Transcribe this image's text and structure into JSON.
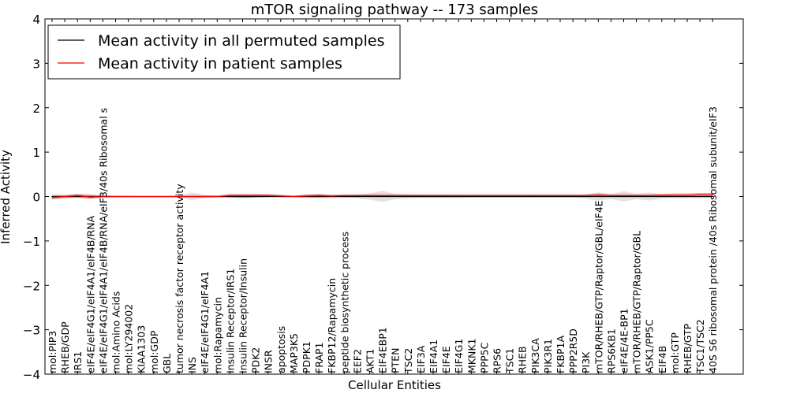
{
  "chart_data": {
    "type": "line",
    "title": "mTOR signaling pathway -- 173 samples",
    "xlabel": "Cellular Entities",
    "ylabel": "Inferred Activity",
    "ylim": [
      -4,
      4
    ],
    "yticks": [
      -4,
      -3,
      -2,
      -1,
      0,
      1,
      2,
      3,
      4
    ],
    "ytick_labels": [
      "−4",
      "−3",
      "−2",
      "−1",
      "0",
      "1",
      "2",
      "3",
      "4"
    ],
    "grid": false,
    "legend_position": "top-left",
    "categories": [
      "mol:PIP3",
      "RHEB/GDP",
      "IRS1",
      "eIF4E/eIF4G1/eIF4A1/eIF4B/RNA",
      "eIF4E/eIF4G1/eIF4A1/eIF4B/RNA/eIF3/40s Ribosomal s",
      "mol:Amino Acids",
      "mol:LY294002",
      "KIAA1303",
      "mol:GDP",
      "GBL",
      "tumor necrosis factor receptor activity",
      "INS",
      "eIF4E/eIF4G1/eIF4A1",
      "mol:Rapamycin",
      "Insulin Receptor/IRS1",
      "Insulin Receptor/Insulin",
      "PDK2",
      "INSR",
      "apoptosis",
      "MAP3K5",
      "PDPK1",
      "FRAP1",
      "FKBP12/Rapamycin",
      "peptide biosynthetic process",
      "EEF2",
      "AKT1",
      "EIF4EBP1",
      "PTEN",
      "TSC2",
      "EIF3A",
      "EIF4A1",
      "EIF4E",
      "EIF4G1",
      "MKNK1",
      "PPP5C",
      "RPS6",
      "TSC1",
      "RHEB",
      "PIK3CA",
      "PIK3R1",
      "FKBP1A",
      "PPP2R5D",
      "PI3K",
      "mTOR/RHEB/GTP/Raptor/GBL/eIF4E",
      "RPS6KB1",
      "eIF4E/4E-BP1",
      "mTOR/RHEB/GTP/Raptor/GBL",
      "ASK1/PP5C",
      "EIF4B",
      "mol:GTP",
      "RHEB/GTP",
      "TSC1/TSC2",
      "40S S6 ribosomal protein /40s Ribosomal subunit/eIF3"
    ],
    "series": [
      {
        "name": "Mean activity in all permuted samples",
        "color": "#000000",
        "values": [
          0.0,
          0.0,
          0.0,
          0.0,
          0.0,
          0.0,
          0.0,
          0.0,
          0.0,
          0.0,
          0.0,
          0.0,
          0.0,
          0.0,
          0.0,
          0.0,
          0.0,
          0.0,
          0.0,
          0.0,
          0.0,
          0.0,
          0.0,
          0.0,
          0.0,
          0.0,
          0.0,
          0.0,
          0.0,
          0.0,
          0.0,
          0.0,
          0.0,
          0.0,
          0.0,
          0.0,
          0.0,
          0.0,
          0.0,
          0.0,
          0.0,
          0.0,
          0.0,
          0.0,
          0.0,
          0.0,
          0.0,
          0.0,
          0.0,
          0.0,
          0.0,
          0.0,
          0.0
        ],
        "band_color": "#d8d8d8",
        "band_lower": [
          -0.07,
          -0.05,
          -0.04,
          -0.06,
          -0.03,
          -0.02,
          -0.02,
          -0.01,
          -0.01,
          -0.01,
          -0.02,
          -0.08,
          -0.04,
          -0.02,
          -0.03,
          -0.04,
          -0.03,
          -0.02,
          -0.02,
          -0.02,
          -0.03,
          -0.05,
          -0.04,
          -0.03,
          -0.04,
          -0.07,
          -0.12,
          -0.06,
          -0.05,
          -0.04,
          -0.04,
          -0.04,
          -0.04,
          -0.03,
          -0.03,
          -0.03,
          -0.03,
          -0.03,
          -0.03,
          -0.03,
          -0.03,
          -0.03,
          -0.05,
          -0.09,
          -0.06,
          -0.11,
          -0.06,
          -0.09,
          -0.05,
          -0.04,
          -0.04,
          -0.04,
          -0.04
        ],
        "band_upper": [
          0.06,
          0.04,
          0.05,
          0.05,
          0.03,
          0.02,
          0.02,
          0.01,
          0.01,
          0.01,
          0.02,
          0.09,
          0.04,
          0.02,
          0.03,
          0.04,
          0.03,
          0.02,
          0.02,
          0.02,
          0.03,
          0.05,
          0.04,
          0.03,
          0.04,
          0.07,
          0.13,
          0.06,
          0.05,
          0.04,
          0.04,
          0.04,
          0.04,
          0.03,
          0.03,
          0.03,
          0.03,
          0.03,
          0.03,
          0.03,
          0.03,
          0.03,
          0.05,
          0.09,
          0.06,
          0.12,
          0.06,
          0.09,
          0.05,
          0.04,
          0.04,
          0.04,
          0.04
        ]
      },
      {
        "name": "Mean activity in patient samples",
        "color": "#ff0000",
        "values": [
          -0.02,
          0.0,
          0.02,
          -0.01,
          0.0,
          0.0,
          0.0,
          0.0,
          0.0,
          0.0,
          0.0,
          0.0,
          0.0,
          0.0,
          0.02,
          0.02,
          0.02,
          0.02,
          0.01,
          0.0,
          0.01,
          0.02,
          0.01,
          0.02,
          0.02,
          0.02,
          0.02,
          0.02,
          0.02,
          0.02,
          0.02,
          0.02,
          0.02,
          0.02,
          0.02,
          0.02,
          0.02,
          0.02,
          0.02,
          0.02,
          0.02,
          0.02,
          0.02,
          0.03,
          0.02,
          0.02,
          0.02,
          0.02,
          0.03,
          0.03,
          0.03,
          0.04,
          0.04
        ],
        "band_color": "#e06060",
        "band_lower": [
          -0.06,
          -0.03,
          -0.02,
          -0.05,
          -0.02,
          -0.01,
          -0.01,
          -0.01,
          -0.01,
          -0.01,
          -0.01,
          -0.02,
          -0.02,
          -0.01,
          -0.02,
          -0.03,
          -0.02,
          -0.01,
          -0.01,
          -0.01,
          -0.02,
          -0.02,
          -0.01,
          -0.01,
          -0.01,
          -0.01,
          -0.01,
          -0.01,
          -0.01,
          -0.01,
          -0.01,
          -0.01,
          -0.01,
          -0.01,
          -0.01,
          -0.01,
          -0.01,
          -0.01,
          -0.01,
          -0.01,
          -0.01,
          -0.01,
          -0.01,
          -0.01,
          -0.01,
          -0.01,
          -0.01,
          -0.01,
          -0.01,
          -0.01,
          -0.01,
          -0.01,
          -0.01
        ],
        "band_upper": [
          0.02,
          0.03,
          0.06,
          0.04,
          0.02,
          0.01,
          0.01,
          0.01,
          0.01,
          0.01,
          0.01,
          0.02,
          0.02,
          0.02,
          0.06,
          0.06,
          0.06,
          0.06,
          0.04,
          0.02,
          0.05,
          0.06,
          0.04,
          0.05,
          0.05,
          0.05,
          0.05,
          0.05,
          0.05,
          0.05,
          0.05,
          0.05,
          0.05,
          0.05,
          0.05,
          0.05,
          0.05,
          0.05,
          0.05,
          0.05,
          0.05,
          0.05,
          0.05,
          0.07,
          0.05,
          0.05,
          0.05,
          0.05,
          0.06,
          0.07,
          0.07,
          0.08,
          0.08
        ]
      }
    ]
  }
}
